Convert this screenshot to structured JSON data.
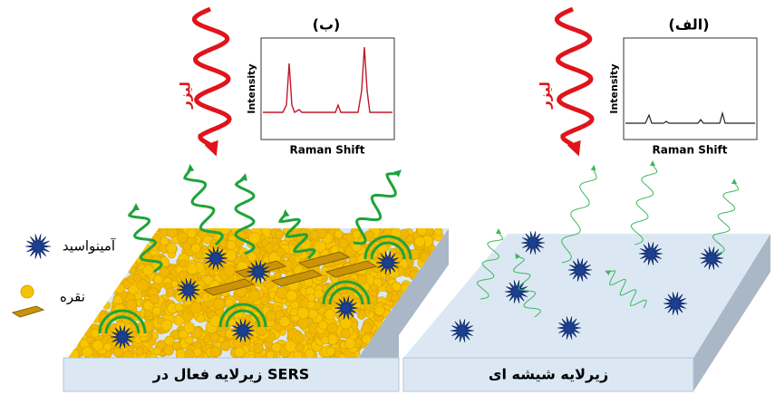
{
  "panel_b": {
    "label": "(ب)",
    "laser": "لیزر",
    "y_axis": "Intensity",
    "x_axis": "Raman Shift",
    "substrate": "زیرلایه فعال در SERS"
  },
  "panel_a": {
    "label": "(الف)",
    "laser": "لیزر",
    "y_axis": "Intensity",
    "x_axis": "Raman Shift",
    "substrate": "زیرلایه شیشه ای"
  },
  "legend": {
    "amino_acid": "آمینواسید",
    "silver": "نقره"
  }
}
